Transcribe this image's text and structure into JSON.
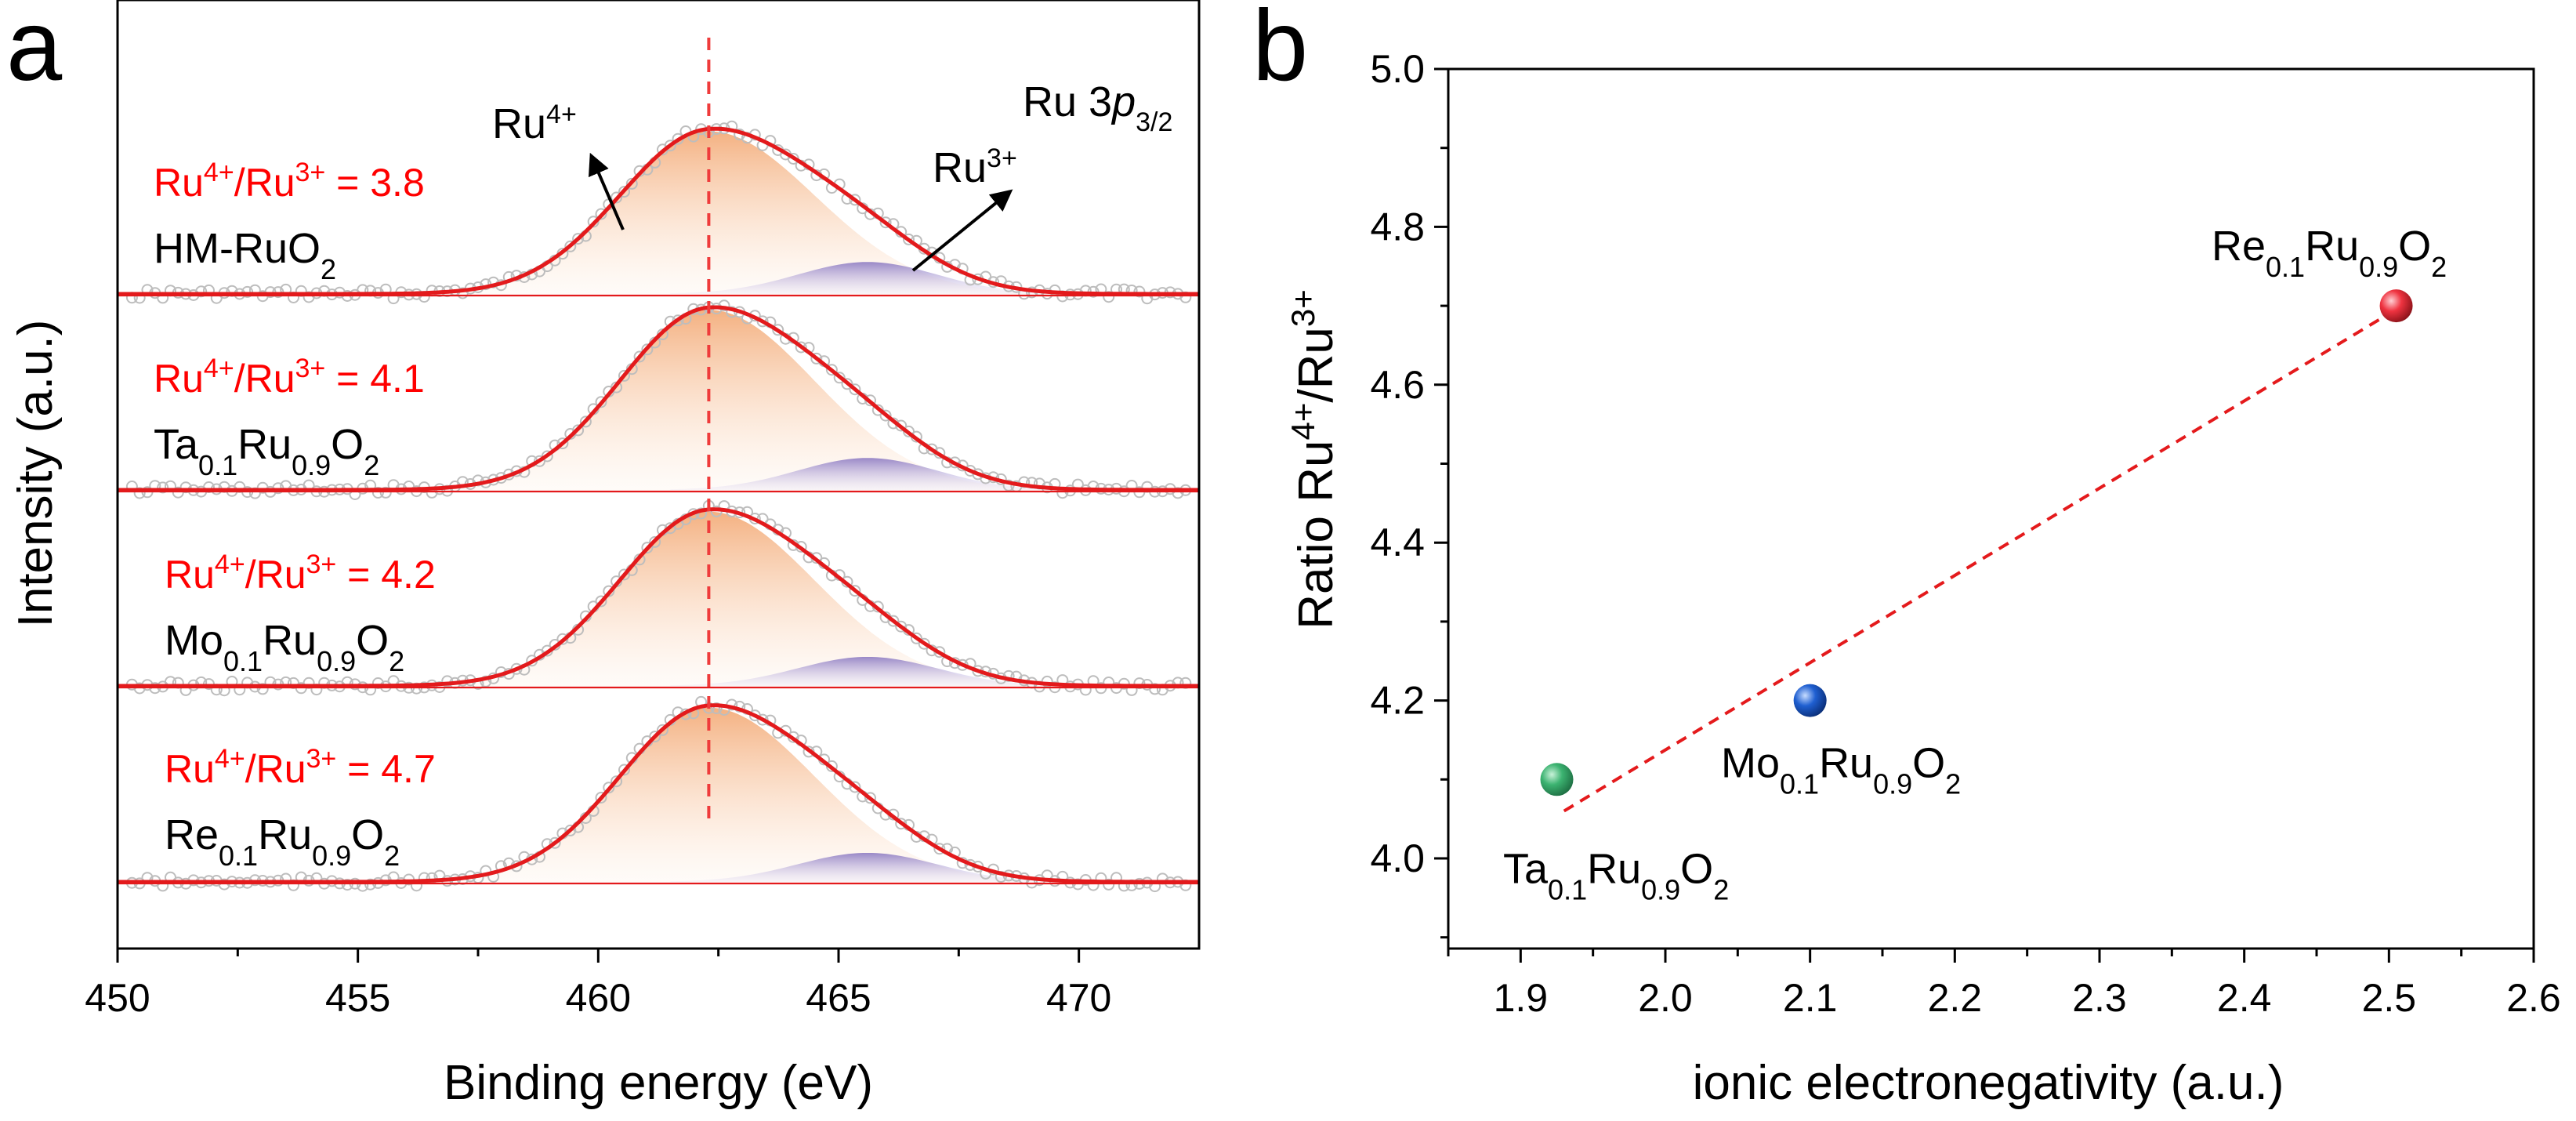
{
  "colors": {
    "fit_line": "#e31a1c",
    "red_text": "#ff0000",
    "ru4_fill": "#f2a36b",
    "ru3_fill": "#8e7cc3",
    "raw_points": "#bdbdbd",
    "dashed_ref": "#ef3b3b",
    "trend_line": "#e41a1c",
    "ta_point": "#3cb371",
    "mo_point": "#1f5fd1",
    "re_point": "#ef3340"
  },
  "chart_data": [
    {
      "panel": "a",
      "type": "line",
      "title": "",
      "xlabel": "Binding energy (eV)",
      "ylabel": "Intensity (a.u.)",
      "xlim": [
        450,
        472.5
      ],
      "x_ticks": [
        450,
        455,
        460,
        465,
        470
      ],
      "x_tick_labels": [
        "450",
        "455",
        "460",
        "465",
        "470"
      ],
      "y_ticks": [],
      "peak_reference_ev": 462.3,
      "peak_labels": {
        "ru4": {
          "base": "Ru",
          "sup": "4+"
        },
        "ru3": {
          "base": "Ru",
          "sup": "3+"
        },
        "orbital": {
          "prefix": "Ru 3",
          "italic": "p",
          "sub": "3/2"
        }
      },
      "series": [
        {
          "name": "HM-RuO2",
          "label_parts": [
            {
              "t": "HM-RuO",
              "s": ""
            },
            {
              "t": "2",
              "s": "sub"
            }
          ],
          "ratio_value": "3.8",
          "ru4_center": 462.3,
          "ru4_amplitude": 0.56,
          "ru4_sigma_left": 1.85,
          "ru4_sigma_right": 2.2,
          "ru3_center": 465.6,
          "ru3_amplitude": 0.11,
          "ru3_sigma": 1.45
        },
        {
          "name": "Ta0.1Ru0.9O2",
          "label_parts": [
            {
              "t": "Ta",
              "s": ""
            },
            {
              "t": "0.1",
              "s": "sub"
            },
            {
              "t": "Ru",
              "s": ""
            },
            {
              "t": "0.9",
              "s": "sub"
            },
            {
              "t": "O",
              "s": ""
            },
            {
              "t": "2",
              "s": "sub"
            }
          ],
          "ratio_value": "4.1",
          "ru4_center": 462.3,
          "ru4_amplitude": 0.62,
          "ru4_sigma_left": 1.85,
          "ru4_sigma_right": 2.2,
          "ru3_center": 465.6,
          "ru3_amplitude": 0.11,
          "ru3_sigma": 1.45
        },
        {
          "name": "Mo0.1Ru0.9O2",
          "label_parts": [
            {
              "t": "Mo",
              "s": ""
            },
            {
              "t": "0.1",
              "s": "sub"
            },
            {
              "t": "Ru",
              "s": ""
            },
            {
              "t": "0.9",
              "s": "sub"
            },
            {
              "t": "O",
              "s": ""
            },
            {
              "t": "2",
              "s": "sub"
            }
          ],
          "ratio_value": "4.2",
          "ru4_center": 462.3,
          "ru4_amplitude": 0.6,
          "ru4_sigma_left": 1.85,
          "ru4_sigma_right": 2.2,
          "ru3_center": 465.6,
          "ru3_amplitude": 0.1,
          "ru3_sigma": 1.45
        },
        {
          "name": "Re0.1Ru0.9O2",
          "label_parts": [
            {
              "t": "Re",
              "s": ""
            },
            {
              "t": "0.1",
              "s": "sub"
            },
            {
              "t": "Ru",
              "s": ""
            },
            {
              "t": "0.9",
              "s": "sub"
            },
            {
              "t": "O",
              "s": ""
            },
            {
              "t": "2",
              "s": "sub"
            }
          ],
          "ratio_value": "4.7",
          "ru4_center": 462.3,
          "ru4_amplitude": 0.6,
          "ru4_sigma_left": 1.85,
          "ru4_sigma_right": 2.2,
          "ru3_center": 465.6,
          "ru3_amplitude": 0.1,
          "ru3_sigma": 1.45
        }
      ],
      "ratio_prefix": "Ru",
      "ratio_sup1": "4+",
      "ratio_mid": "/Ru",
      "ratio_sup2": "3+",
      "ratio_eq": " = "
    },
    {
      "panel": "b",
      "type": "scatter",
      "title": "",
      "xlabel": "ionic electronegativity (a.u.)",
      "ylabel_parts": [
        {
          "t": "Ratio Ru",
          "s": ""
        },
        {
          "t": "4+",
          "s": "sup"
        },
        {
          "t": "/Ru",
          "s": ""
        },
        {
          "t": "3+",
          "s": "sup"
        }
      ],
      "xlim": [
        1.85,
        2.6
      ],
      "ylim": [
        3.9,
        5.0
      ],
      "x_ticks": [
        1.9,
        2.0,
        2.1,
        2.2,
        2.3,
        2.4,
        2.5,
        2.6
      ],
      "x_tick_labels": [
        "1.9",
        "2.0",
        "2.1",
        "2.2",
        "2.3",
        "2.4",
        "2.5",
        "2.6"
      ],
      "y_ticks": [
        4.0,
        4.2,
        4.4,
        4.6,
        4.8,
        5.0
      ],
      "y_tick_labels": [
        "4.0",
        "4.2",
        "4.4",
        "4.6",
        "4.8",
        "5.0"
      ],
      "points": [
        {
          "name": "Ta0.1Ru0.9O2",
          "x": 1.925,
          "y": 4.1,
          "color_key": "ta_point",
          "label_position": "below",
          "label_parts": [
            {
              "t": "Ta",
              "s": ""
            },
            {
              "t": "0.1",
              "s": "sub"
            },
            {
              "t": "Ru",
              "s": ""
            },
            {
              "t": "0.9",
              "s": "sub"
            },
            {
              "t": "O",
              "s": ""
            },
            {
              "t": "2",
              "s": "sub"
            }
          ]
        },
        {
          "name": "Mo0.1Ru0.9O2",
          "x": 2.1,
          "y": 4.2,
          "color_key": "mo_point",
          "label_position": "below-right",
          "label_parts": [
            {
              "t": "Mo",
              "s": ""
            },
            {
              "t": "0.1",
              "s": "sub"
            },
            {
              "t": "Ru",
              "s": ""
            },
            {
              "t": "0.9",
              "s": "sub"
            },
            {
              "t": "O",
              "s": ""
            },
            {
              "t": "2",
              "s": "sub"
            }
          ]
        },
        {
          "name": "Re0.1Ru0.9O2",
          "x": 2.505,
          "y": 4.7,
          "color_key": "re_point",
          "label_position": "above-left",
          "label_parts": [
            {
              "t": "Re",
              "s": ""
            },
            {
              "t": "0.1",
              "s": "sub"
            },
            {
              "t": "Ru",
              "s": ""
            },
            {
              "t": "0.9",
              "s": "sub"
            },
            {
              "t": "O",
              "s": ""
            },
            {
              "t": "2",
              "s": "sub"
            }
          ]
        }
      ],
      "trend_line": {
        "x": [
          1.93,
          2.5
        ],
        "y": [
          4.06,
          4.69
        ],
        "style": "dashed"
      }
    }
  ],
  "panel_letters": {
    "a": "a",
    "b": "b"
  }
}
